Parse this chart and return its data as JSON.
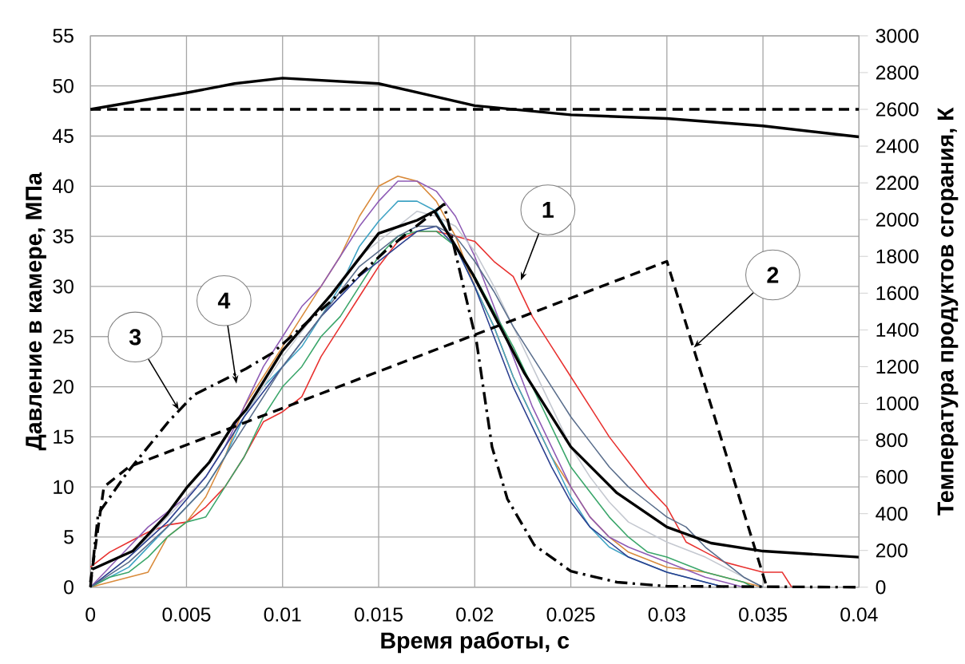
{
  "chart_data": {
    "type": "line",
    "xlabel": "Время работы, с",
    "ylabel": "Давление в камере, МПа",
    "y2label": "Температура продуктов сгорания, К",
    "xlim": [
      0,
      0.04
    ],
    "xticks": [
      0,
      0.005,
      0.01,
      0.015,
      0.02,
      0.025,
      0.03,
      0.035,
      0.04
    ],
    "ylim": [
      0,
      55
    ],
    "yticks": [
      0,
      5,
      10,
      15,
      20,
      25,
      30,
      35,
      40,
      45,
      50,
      55
    ],
    "y2lim": [
      0,
      3000
    ],
    "y2ticks": [
      0,
      200,
      400,
      600,
      800,
      1000,
      1200,
      1400,
      1600,
      1800,
      2000,
      2200,
      2400,
      2600,
      2800,
      3000
    ],
    "grid": true,
    "series": [
      {
        "color": "#e8312f",
        "line_style": "solid",
        "x": [
          0,
          0.001,
          0.002,
          0.003,
          0.004,
          0.005,
          0.006,
          0.007,
          0.008,
          0.009,
          0.01,
          0.011,
          0.012,
          0.013,
          0.014,
          0.015,
          0.016,
          0.017,
          0.018,
          0.019,
          0.02,
          0.021,
          0.022,
          0.023,
          0.024,
          0.025,
          0.026,
          0.027,
          0.028,
          0.029,
          0.03,
          0.031,
          0.032,
          0.033,
          0.034,
          0.035,
          0.036,
          0.0365
        ],
        "values": [
          2,
          3.5,
          4.5,
          5.5,
          6.2,
          6.5,
          8,
          10,
          13,
          16.5,
          17.5,
          19,
          23,
          26,
          29,
          32,
          34.5,
          35.5,
          35.5,
          35,
          34.5,
          32.5,
          31,
          27,
          24,
          21,
          18,
          15,
          12.5,
          10,
          8,
          4.5,
          3.5,
          2.5,
          2,
          1.5,
          1.5,
          0
        ]
      },
      {
        "color": "#d98a3a",
        "line_style": "solid",
        "x": [
          0,
          0.002,
          0.003,
          0.004,
          0.005,
          0.006,
          0.007,
          0.008,
          0.009,
          0.01,
          0.011,
          0.012,
          0.013,
          0.014,
          0.015,
          0.016,
          0.017,
          0.018,
          0.019,
          0.02,
          0.021,
          0.022,
          0.023,
          0.024,
          0.025,
          0.026,
          0.027,
          0.028,
          0.03,
          0.032,
          0.034,
          0.035
        ],
        "values": [
          0,
          1,
          1.5,
          5,
          6.5,
          9,
          13,
          18,
          21,
          24,
          27,
          30,
          33,
          37,
          40,
          41,
          40.5,
          38.5,
          35,
          30,
          26,
          21,
          17,
          13,
          10,
          7,
          5,
          3.5,
          2,
          1.5,
          0.5,
          0
        ]
      },
      {
        "color": "#8e5bb5",
        "line_style": "solid",
        "x": [
          0,
          0.002,
          0.003,
          0.004,
          0.005,
          0.006,
          0.007,
          0.008,
          0.009,
          0.01,
          0.011,
          0.012,
          0.013,
          0.014,
          0.015,
          0.016,
          0.017,
          0.018,
          0.019,
          0.02,
          0.021,
          0.022,
          0.023,
          0.024,
          0.025,
          0.026,
          0.027,
          0.028,
          0.03,
          0.032,
          0.034
        ],
        "values": [
          0,
          4,
          6,
          7.5,
          9,
          11,
          14,
          18,
          22,
          25,
          28,
          30,
          33,
          36,
          38.5,
          40.5,
          40.5,
          39.5,
          37,
          33,
          28,
          23,
          18,
          14,
          10,
          7,
          5,
          4,
          2.5,
          1,
          0
        ]
      },
      {
        "color": "#3fa3c4",
        "line_style": "solid",
        "x": [
          0,
          0.002,
          0.004,
          0.005,
          0.006,
          0.007,
          0.008,
          0.009,
          0.01,
          0.011,
          0.012,
          0.013,
          0.014,
          0.015,
          0.016,
          0.017,
          0.018,
          0.019,
          0.02,
          0.021,
          0.022,
          0.023,
          0.024,
          0.025,
          0.026,
          0.027,
          0.028,
          0.03,
          0.032,
          0.033
        ],
        "values": [
          0,
          2,
          6,
          8,
          10,
          13,
          17,
          20,
          22,
          24,
          27,
          30,
          34,
          36.5,
          38.5,
          38.5,
          37.5,
          34,
          30,
          26,
          21,
          17,
          13,
          9,
          6,
          4,
          3,
          1.5,
          0.5,
          0
        ]
      },
      {
        "color": "#3aa66a",
        "line_style": "solid",
        "x": [
          0,
          0.001,
          0.002,
          0.003,
          0.004,
          0.005,
          0.006,
          0.007,
          0.008,
          0.009,
          0.01,
          0.011,
          0.012,
          0.013,
          0.014,
          0.015,
          0.016,
          0.017,
          0.018,
          0.019,
          0.02,
          0.021,
          0.022,
          0.023,
          0.024,
          0.025,
          0.026,
          0.027,
          0.028,
          0.029,
          0.03,
          0.032,
          0.034,
          0.0345
        ],
        "values": [
          0,
          1,
          1.5,
          3,
          5,
          6.5,
          7,
          10,
          13,
          17,
          20,
          22,
          25,
          27,
          30,
          33,
          35,
          35.5,
          35.5,
          34,
          31,
          27.5,
          24,
          20,
          16,
          12,
          9.5,
          7,
          5,
          3.5,
          3,
          1.5,
          0.5,
          0
        ]
      },
      {
        "color": "#c4c8d0",
        "line_style": "solid",
        "x": [
          0,
          0.002,
          0.004,
          0.006,
          0.008,
          0.01,
          0.012,
          0.014,
          0.016,
          0.017,
          0.018,
          0.019,
          0.02,
          0.021,
          0.022,
          0.023,
          0.024,
          0.025,
          0.026,
          0.027,
          0.028,
          0.029,
          0.03,
          0.032,
          0.034,
          0.035
        ],
        "values": [
          0,
          3,
          7,
          11,
          17,
          23,
          28,
          33,
          36,
          37.5,
          37,
          36,
          33.5,
          30,
          26,
          22,
          18,
          14,
          11,
          8.5,
          6.5,
          5.5,
          4.5,
          3,
          1,
          0
        ]
      },
      {
        "color": "#2b3f8f",
        "line_style": "solid",
        "x": [
          0,
          0.002,
          0.004,
          0.006,
          0.008,
          0.01,
          0.012,
          0.014,
          0.016,
          0.017,
          0.018,
          0.019,
          0.02,
          0.021,
          0.022,
          0.023,
          0.024,
          0.025,
          0.026,
          0.027,
          0.028,
          0.03,
          0.032,
          0.033
        ],
        "values": [
          0,
          3,
          6.5,
          11,
          17,
          22,
          27,
          31,
          34,
          35.5,
          36,
          34,
          30,
          25,
          20,
          16,
          12,
          8.5,
          6,
          4.5,
          3,
          1.5,
          0.5,
          0
        ]
      },
      {
        "color": "#5a6e8c",
        "line_style": "solid",
        "x": [
          0,
          0.002,
          0.004,
          0.006,
          0.008,
          0.01,
          0.012,
          0.014,
          0.016,
          0.017,
          0.018,
          0.019,
          0.02,
          0.021,
          0.022,
          0.023,
          0.024,
          0.025,
          0.026,
          0.027,
          0.028,
          0.029,
          0.03,
          0.031,
          0.032,
          0.033,
          0.034,
          0.035
        ],
        "values": [
          0,
          2.5,
          6,
          10,
          16,
          22,
          27,
          32,
          35,
          36,
          36,
          35,
          32.5,
          29.5,
          26,
          23,
          20,
          17,
          14.5,
          12,
          10,
          8.5,
          7,
          6,
          4,
          2.5,
          1,
          0
        ]
      },
      {
        "color": "#000000",
        "line_style": "dashed",
        "x": [
          0,
          0.0007,
          0.002,
          0.03,
          0.0352
        ],
        "values": [
          0.5,
          10,
          12,
          32.5,
          0
        ]
      },
      {
        "color": "#000000",
        "line_style": "dashdot",
        "x": [
          0,
          0.0004,
          0.0019,
          0.0041,
          0.0054,
          0.0081,
          0.0095,
          0.0125,
          0.0155,
          0.0184,
          0.0201,
          0.0209,
          0.0217,
          0.0231,
          0.025,
          0.0274,
          0.03,
          0.04
        ],
        "values": [
          0,
          7.3,
          11.4,
          16.6,
          19.2,
          21.8,
          23.4,
          28.5,
          33.8,
          38.2,
          24.4,
          14,
          8.8,
          4.2,
          1.6,
          0.5,
          0.1,
          0
        ]
      },
      {
        "color": "#000000",
        "line_style": "solid",
        "x": [
          0.0001,
          0.0022,
          0.004,
          0.005,
          0.0062,
          0.0075,
          0.0081,
          0.01,
          0.0125,
          0.015,
          0.017,
          0.0179,
          0.0199,
          0.0226,
          0.025,
          0.0274,
          0.03,
          0.0323,
          0.035,
          0.04
        ],
        "values": [
          1.8,
          3.6,
          7.3,
          9.9,
          12.5,
          16.4,
          17.7,
          23.6,
          29.1,
          35.3,
          36.6,
          37.5,
          31.2,
          21.3,
          14,
          9.4,
          6,
          4.4,
          3.6,
          3
        ]
      },
      {
        "color": "#000000",
        "line_style": "solid",
        "axis": "y2",
        "x": [
          0,
          0.005,
          0.0075,
          0.01,
          0.015,
          0.02,
          0.025,
          0.03,
          0.035,
          0.04
        ],
        "values": [
          2600,
          2690,
          2740,
          2770,
          2740,
          2620,
          2570,
          2550,
          2510,
          2450
        ]
      },
      {
        "color": "#000000",
        "line_style": "dashed",
        "axis": "y2",
        "x": [
          0,
          0.04
        ],
        "values": [
          2600,
          2600
        ]
      }
    ],
    "annotations": [
      {
        "text": "1",
        "x": 0.0224,
        "y": 30.6
      },
      {
        "text": "2",
        "x": 0.0314,
        "y": 23.9
      },
      {
        "text": "3",
        "x": 0.0046,
        "y": 17.7
      },
      {
        "text": "4",
        "x": 0.0076,
        "y": 20.3
      }
    ]
  }
}
